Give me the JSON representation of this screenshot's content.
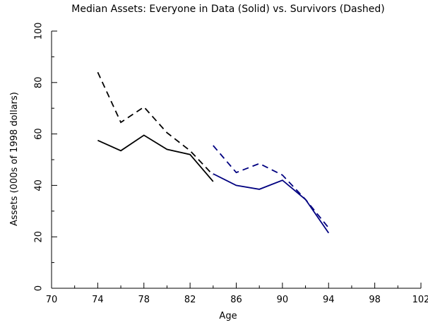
{
  "chart_data": {
    "type": "line",
    "title": "Median Assets:  Everyone in Data (Solid) vs. Survivors (Dashed)",
    "xlabel": "Age",
    "ylabel": "Assets (000s of 1998 dollars)",
    "xlim": [
      70,
      102
    ],
    "ylim": [
      0,
      100
    ],
    "xticks": [
      70,
      74,
      78,
      82,
      86,
      90,
      94,
      98,
      102
    ],
    "yticks": [
      0,
      20,
      40,
      60,
      80,
      100
    ],
    "grid": false,
    "series": [
      {
        "style": "solid",
        "color": "#000000",
        "x": [
          74,
          76,
          78,
          80,
          82,
          84
        ],
        "y": [
          57.5,
          53.5,
          59.5,
          54,
          52,
          41.5
        ]
      },
      {
        "style": "dashed",
        "color": "#000000",
        "x": [
          74,
          76,
          78,
          80,
          82,
          84
        ],
        "y": [
          84,
          64.5,
          70.5,
          60.5,
          53.5,
          44
        ]
      },
      {
        "style": "solid",
        "color": "#000080",
        "x": [
          84,
          86,
          88,
          90,
          92,
          94
        ],
        "y": [
          44.5,
          40,
          38.5,
          42,
          34.5,
          21.5
        ]
      },
      {
        "style": "dashed",
        "color": "#000080",
        "x": [
          84,
          86,
          88,
          90,
          92,
          94
        ],
        "y": [
          55.5,
          45,
          48.5,
          44,
          34.5,
          23.5
        ]
      }
    ]
  }
}
